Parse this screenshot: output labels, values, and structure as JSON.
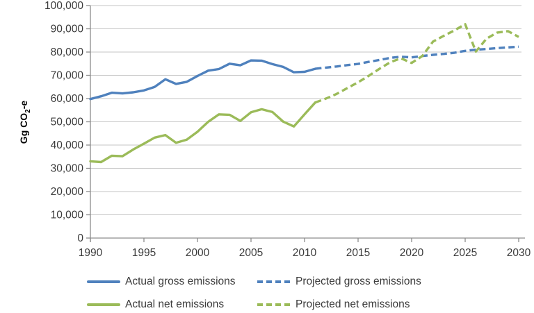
{
  "figure": {
    "ylabel": {
      "prefix": "Gg CO",
      "sub": "2",
      "suffix": "-e"
    }
  },
  "colors": {
    "gross_blue": "#4F81BD",
    "net_green": "#9BBB59",
    "gridline": "#C6C6C6",
    "axis": "#8C8C8C",
    "text": "#3B3B3B"
  },
  "chart_data": {
    "type": "line",
    "title": "",
    "xlabel": "",
    "ylabel": "Gg CO2-e",
    "xlim": [
      1990,
      2030
    ],
    "ylim": [
      0,
      100000
    ],
    "grid": "horizontal gridlines on",
    "legend_position": "bottom, 2 columns",
    "x_ticks": [
      "1990",
      "1995",
      "2000",
      "2005",
      "2010",
      "2015",
      "2020",
      "2025",
      "2030"
    ],
    "y_ticks": [
      "0",
      "10,000",
      "20,000",
      "30,000",
      "40,000",
      "50,000",
      "60,000",
      "70,000",
      "80,000",
      "90,000",
      "100,000"
    ],
    "series": [
      {
        "name": "Actual gross emissions",
        "color": "#4F81BD",
        "style": "solid",
        "x": [
          1990,
          1991,
          1992,
          1993,
          1994,
          1995,
          1996,
          1997,
          1998,
          1999,
          2000,
          2001,
          2002,
          2003,
          2004,
          2005,
          2006,
          2007,
          2008,
          2009,
          2010,
          2011
        ],
        "values": [
          59800,
          61000,
          62500,
          62200,
          62700,
          63500,
          65000,
          68300,
          66300,
          67200,
          69700,
          72000,
          72700,
          75000,
          74300,
          76400,
          76300,
          74800,
          73600,
          71300,
          71500,
          72800
        ]
      },
      {
        "name": "Projected gross emissions",
        "color": "#4F81BD",
        "style": "dashed",
        "x": [
          2011,
          2012,
          2013,
          2014,
          2015,
          2016,
          2017,
          2018,
          2019,
          2020,
          2021,
          2022,
          2023,
          2024,
          2025,
          2026,
          2027,
          2028,
          2029,
          2030
        ],
        "values": [
          72800,
          73300,
          73800,
          74400,
          74900,
          75800,
          76600,
          77500,
          78000,
          77700,
          78300,
          78800,
          79200,
          79700,
          80500,
          81000,
          81300,
          81700,
          82000,
          82300
        ]
      },
      {
        "name": "Actual net emissions",
        "color": "#9BBB59",
        "style": "solid",
        "x": [
          1990,
          1991,
          1992,
          1993,
          1994,
          1995,
          1996,
          1997,
          1998,
          1999,
          2000,
          2001,
          2002,
          2003,
          2004,
          2005,
          2006,
          2007,
          2008,
          2009,
          2010,
          2011
        ],
        "values": [
          33000,
          32700,
          35400,
          35200,
          38100,
          40600,
          43200,
          44300,
          41000,
          42300,
          45700,
          50000,
          53200,
          53000,
          50400,
          54100,
          55400,
          54200,
          50100,
          48000,
          53200,
          58300
        ]
      },
      {
        "name": "Projected net emissions",
        "color": "#9BBB59",
        "style": "dashed",
        "x": [
          2011,
          2012,
          2013,
          2014,
          2015,
          2016,
          2017,
          2018,
          2019,
          2020,
          2021,
          2022,
          2023,
          2024,
          2025,
          2026,
          2027,
          2028,
          2029,
          2030
        ],
        "values": [
          58300,
          60000,
          62000,
          64500,
          67000,
          69800,
          72800,
          75600,
          77300,
          75300,
          78300,
          84500,
          87000,
          89300,
          92000,
          80200,
          85800,
          88400,
          89000,
          86500
        ]
      }
    ]
  }
}
